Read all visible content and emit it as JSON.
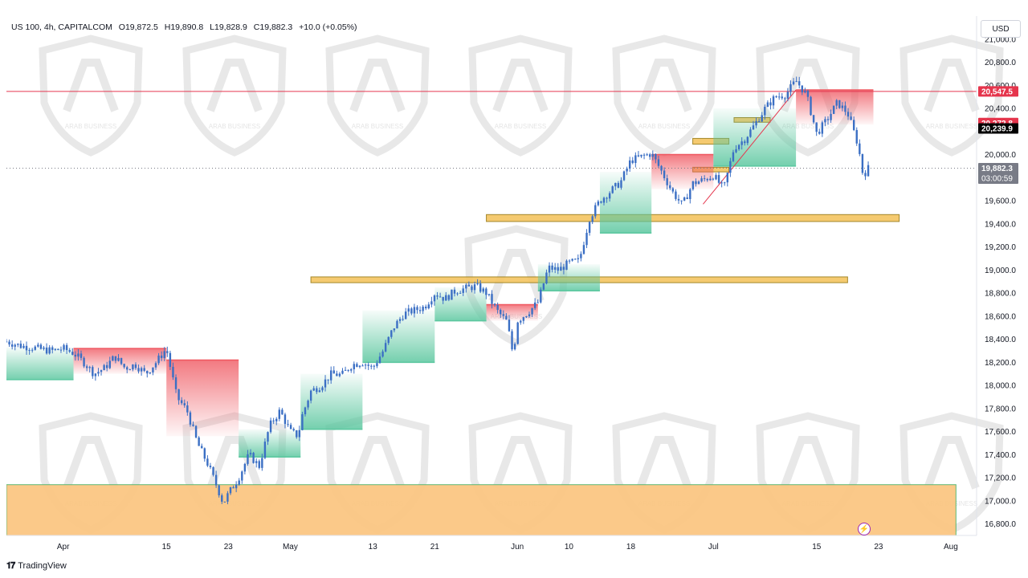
{
  "header": {
    "symbol": "US 100, 4h, CAPITALCOM",
    "open": "O19,872.5",
    "high": "H19,890.8",
    "low": "L19,828.9",
    "close": "C19,882.3",
    "change": "+10.0 (+0.05%)"
  },
  "currency": "USD",
  "branding": "TradingView",
  "watermark_text": "ARAB BUSINESS",
  "colors": {
    "candle": "#3b6fc4",
    "resistance_line": "#e53950",
    "zone": "#f5c561",
    "zone_border": "#9a7b14",
    "demand_zone": "#fbc783",
    "demand_border": "#52b46c",
    "cloud_bull": "#5bc79f",
    "cloud_bear": "#ef5861",
    "last_price_bg": "#6b6f7c",
    "badge_red": "#e5354c",
    "badge_black": "#000000",
    "badge_gray": "#787b86"
  },
  "chart_data": {
    "type": "candlestick",
    "instrument": "US 100",
    "timeframe": "4h",
    "y_axis": {
      "range": [
        16700,
        21200
      ],
      "ticks": [
        21000,
        20800,
        20600,
        20400,
        20000,
        19600,
        19400,
        19200,
        19000,
        18800,
        18600,
        18400,
        18200,
        18000,
        17800,
        17600,
        17400,
        17200,
        17000,
        16800
      ],
      "tick_labels": [
        "21,000.0",
        "20,800.0",
        "20,600.0",
        "20,400.0",
        "20,000.0",
        "19,600.0",
        "19,400.0",
        "19,200.0",
        "19,000.0",
        "18,800.0",
        "18,600.0",
        "18,400.0",
        "18,200.0",
        "18,000.0",
        "17,800.0",
        "17,600.0",
        "17,400.0",
        "17,200.0",
        "17,000.0",
        "16,800.0"
      ]
    },
    "x_axis": {
      "labels": [
        {
          "label": "Apr",
          "t": 4
        },
        {
          "label": "15",
          "t": 14
        },
        {
          "label": "23",
          "t": 20
        },
        {
          "label": "May",
          "t": 26
        },
        {
          "label": "13",
          "t": 34
        },
        {
          "label": "21",
          "t": 40
        },
        {
          "label": "Jun",
          "t": 48
        },
        {
          "label": "10",
          "t": 53
        },
        {
          "label": "18",
          "t": 59
        },
        {
          "label": "Jul",
          "t": 67
        },
        {
          "label": "15",
          "t": 77
        },
        {
          "label": "23",
          "t": 83
        },
        {
          "label": "Aug",
          "t": 90
        }
      ],
      "t_range": [
        -1.5,
        92.5
      ]
    },
    "series_path": [
      [
        -1.5,
        18380
      ],
      [
        0,
        18340
      ],
      [
        1,
        18330
      ],
      [
        2,
        18310
      ],
      [
        3,
        18300
      ],
      [
        4,
        18320
      ],
      [
        5,
        18280
      ],
      [
        6,
        18200
      ],
      [
        7,
        18100
      ],
      [
        8,
        18150
      ],
      [
        9,
        18250
      ],
      [
        10,
        18150
      ],
      [
        11,
        18180
      ],
      [
        12,
        18100
      ],
      [
        13,
        18200
      ],
      [
        14,
        18320
      ],
      [
        15,
        17900
      ],
      [
        16,
        17780
      ],
      [
        17,
        17500
      ],
      [
        18,
        17320
      ],
      [
        19,
        17100
      ],
      [
        19.5,
        16980
      ],
      [
        20,
        17060
      ],
      [
        21,
        17200
      ],
      [
        22,
        17400
      ],
      [
        23,
        17300
      ],
      [
        24,
        17650
      ],
      [
        25,
        17780
      ],
      [
        26,
        17600
      ],
      [
        26.8,
        17560
      ],
      [
        27,
        17700
      ],
      [
        28,
        17950
      ],
      [
        29,
        18000
      ],
      [
        30,
        18100
      ],
      [
        31,
        18090
      ],
      [
        32,
        18180
      ],
      [
        33,
        18200
      ],
      [
        34,
        18150
      ],
      [
        35,
        18300
      ],
      [
        36,
        18500
      ],
      [
        37,
        18620
      ],
      [
        38,
        18650
      ],
      [
        39,
        18680
      ],
      [
        40,
        18800
      ],
      [
        41,
        18750
      ],
      [
        42,
        18820
      ],
      [
        43,
        18840
      ],
      [
        44,
        18860
      ],
      [
        45,
        18800
      ],
      [
        46,
        18650
      ],
      [
        47,
        18550
      ],
      [
        47.6,
        18260
      ],
      [
        48,
        18560
      ],
      [
        49,
        18630
      ],
      [
        50,
        18720
      ],
      [
        51,
        19020
      ],
      [
        52,
        19000
      ],
      [
        53,
        19060
      ],
      [
        54,
        19080
      ],
      [
        55,
        19450
      ],
      [
        56,
        19600
      ],
      [
        57,
        19680
      ],
      [
        58,
        19760
      ],
      [
        59,
        19950
      ],
      [
        60,
        19980
      ],
      [
        61,
        20010
      ],
      [
        62,
        19850
      ],
      [
        63,
        19680
      ],
      [
        64,
        19560
      ],
      [
        65,
        19750
      ],
      [
        66,
        19780
      ],
      [
        67,
        19820
      ],
      [
        68,
        19700
      ],
      [
        69,
        20060
      ],
      [
        70,
        20130
      ],
      [
        71,
        20260
      ],
      [
        72,
        20400
      ],
      [
        73,
        20500
      ],
      [
        74,
        20520
      ],
      [
        75,
        20640
      ],
      [
        76,
        20520
      ],
      [
        77,
        20180
      ],
      [
        78,
        20300
      ],
      [
        79,
        20450
      ],
      [
        80,
        20360
      ],
      [
        81,
        20090
      ],
      [
        81.5,
        19820
      ],
      [
        82,
        19880
      ]
    ],
    "current_price": 19882.3,
    "levels": [
      {
        "name": "resistance",
        "price": 20547.5,
        "label": "20,547.5",
        "badge": "red"
      },
      {
        "name": "indicator_upper",
        "price": 20272.8,
        "label": "20,272.8",
        "badge": "red"
      },
      {
        "name": "indicator_lower",
        "price": 20239.9,
        "label": "20,239.9",
        "badge": "black"
      },
      {
        "name": "last_price",
        "price": 19882.3,
        "label": "19,882.3",
        "badge": "gray",
        "countdown": "03:00:59"
      }
    ],
    "zones": [
      {
        "name": "support-zone-1",
        "t0": 45,
        "t1": 85,
        "p_low": 19420,
        "p_high": 19480
      },
      {
        "name": "support-zone-2",
        "t0": 28,
        "t1": 80,
        "p_low": 18890,
        "p_high": 18940
      },
      {
        "name": "demand-zone",
        "t0": -1.5,
        "t1": 90.5,
        "p_low": 16700,
        "p_high": 17140
      },
      {
        "name": "mini-zone-1",
        "t0": 65,
        "t1": 68.5,
        "p_low": 20090,
        "p_high": 20140
      },
      {
        "name": "mini-zone-2",
        "t0": 65,
        "t1": 68.5,
        "p_low": 19850,
        "p_high": 19890
      },
      {
        "name": "mini-zone-3",
        "t0": 69,
        "t1": 72.5,
        "p_low": 20280,
        "p_high": 20320
      }
    ],
    "trendline": [
      [
        66,
        19570
      ],
      [
        75,
        20560
      ]
    ],
    "cloud_segments": [
      {
        "t0": -1.5,
        "t1": 5,
        "p_top": 18330,
        "p_bot": 18050,
        "trend": "bull"
      },
      {
        "t0": 5,
        "t1": 14,
        "p_top": 18320,
        "p_bot": 18100,
        "trend": "bear"
      },
      {
        "t0": 14,
        "t1": 21,
        "p_top": 18220,
        "p_bot": 17560,
        "trend": "bear"
      },
      {
        "t0": 21,
        "t1": 27,
        "p_top": 17620,
        "p_bot": 17380,
        "trend": "bull"
      },
      {
        "t0": 27,
        "t1": 33,
        "p_top": 18100,
        "p_bot": 17620,
        "trend": "bull"
      },
      {
        "t0": 33,
        "t1": 40,
        "p_top": 18650,
        "p_bot": 18200,
        "trend": "bull"
      },
      {
        "t0": 40,
        "t1": 45,
        "p_top": 18850,
        "p_bot": 18560,
        "trend": "bull"
      },
      {
        "t0": 45,
        "t1": 50,
        "p_top": 18700,
        "p_bot": 18560,
        "trend": "bear"
      },
      {
        "t0": 50,
        "t1": 56,
        "p_top": 19050,
        "p_bot": 18820,
        "trend": "bull"
      },
      {
        "t0": 56,
        "t1": 61,
        "p_top": 19850,
        "p_bot": 19320,
        "trend": "bull"
      },
      {
        "t0": 61,
        "t1": 67,
        "p_top": 20000,
        "p_bot": 19700,
        "trend": "bear"
      },
      {
        "t0": 67,
        "t1": 75,
        "p_top": 20400,
        "p_bot": 19900,
        "trend": "bull"
      },
      {
        "t0": 75,
        "t1": 82.5,
        "p_top": 20560,
        "p_bot": 20260,
        "trend": "bear"
      }
    ]
  }
}
